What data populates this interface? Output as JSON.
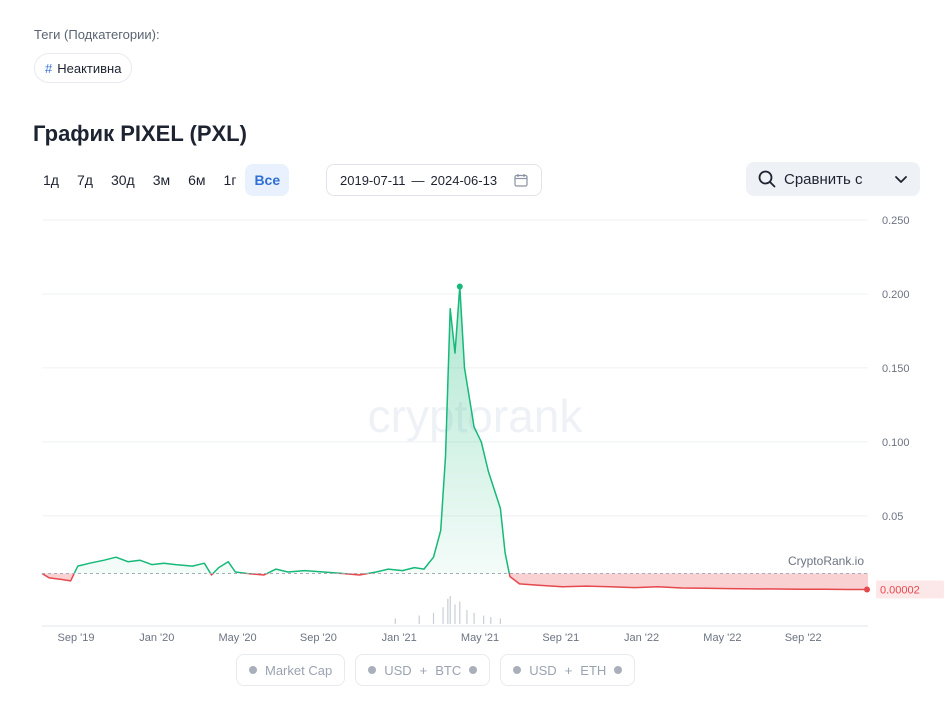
{
  "tags": {
    "label": "Теги (Подкатегории):",
    "chip_hash": "#",
    "chip_label": "Неактивна"
  },
  "title": "График PIXEL (PXL)",
  "ranges": [
    "1д",
    "7д",
    "30д",
    "3м",
    "6м",
    "1г",
    "Все"
  ],
  "active_range": "Все",
  "date_range": {
    "from": "2019-07-11",
    "sep": "—",
    "to": "2024-06-13"
  },
  "compare": {
    "label": "Сравнить с"
  },
  "watermark": "cryptorank",
  "source_label": "CryptoRank.io",
  "current_price_label": "0.00002",
  "legend": [
    {
      "parts": [
        "Market Cap"
      ]
    },
    {
      "parts": [
        "USD",
        "+",
        "BTC"
      ]
    },
    {
      "parts": [
        "USD",
        "+",
        "ETH"
      ]
    }
  ],
  "chart_data": {
    "type": "area",
    "y_ticks": [
      "0.250",
      "0.200",
      "0.150",
      "0.100",
      "0.05"
    ],
    "ylim": [
      -0.0015,
      0.25
    ],
    "x_ticks": [
      "Sep '19",
      "Jan '20",
      "May '20",
      "Sep '20",
      "Jan '21",
      "May '21",
      "Sep '21",
      "Jan '22",
      "May '22",
      "Sep '22"
    ],
    "baseline": 0.011,
    "colors": {
      "up": "#16b979",
      "down": "#e5484d"
    },
    "series": [
      {
        "values": [
          [
            2019.52,
            0.011
          ],
          [
            2019.55,
            0.008
          ],
          [
            2019.6,
            0.007
          ],
          [
            2019.64,
            0.006
          ],
          [
            2019.67,
            0.016
          ],
          [
            2019.72,
            0.018
          ],
          [
            2019.78,
            0.02
          ],
          [
            2019.83,
            0.022
          ],
          [
            2019.88,
            0.019
          ],
          [
            2019.93,
            0.02
          ],
          [
            2019.98,
            0.017
          ],
          [
            2020.03,
            0.018
          ],
          [
            2020.08,
            0.017
          ],
          [
            2020.15,
            0.016
          ],
          [
            2020.2,
            0.018
          ],
          [
            2020.23,
            0.01
          ],
          [
            2020.26,
            0.015
          ],
          [
            2020.3,
            0.019
          ],
          [
            2020.33,
            0.012
          ],
          [
            2020.38,
            0.011
          ],
          [
            2020.45,
            0.01
          ],
          [
            2020.5,
            0.014
          ],
          [
            2020.55,
            0.012
          ],
          [
            2020.62,
            0.013
          ],
          [
            2020.7,
            0.012
          ],
          [
            2020.78,
            0.011
          ],
          [
            2020.85,
            0.01
          ],
          [
            2020.92,
            0.012
          ],
          [
            2020.97,
            0.014
          ],
          [
            2021.03,
            0.013
          ],
          [
            2021.08,
            0.015
          ],
          [
            2021.12,
            0.014
          ],
          [
            2021.16,
            0.022
          ],
          [
            2021.19,
            0.04
          ],
          [
            2021.21,
            0.09
          ],
          [
            2021.23,
            0.19
          ],
          [
            2021.25,
            0.16
          ],
          [
            2021.27,
            0.205
          ],
          [
            2021.29,
            0.15
          ],
          [
            2021.31,
            0.13
          ],
          [
            2021.33,
            0.11
          ],
          [
            2021.36,
            0.1
          ],
          [
            2021.39,
            0.08
          ],
          [
            2021.42,
            0.065
          ],
          [
            2021.44,
            0.055
          ],
          [
            2021.46,
            0.025
          ],
          [
            2021.48,
            0.009
          ],
          [
            2021.52,
            0.004
          ],
          [
            2021.6,
            0.003
          ],
          [
            2021.7,
            0.002
          ],
          [
            2021.8,
            0.0025
          ],
          [
            2021.9,
            0.002
          ],
          [
            2022.0,
            0.0015
          ],
          [
            2022.1,
            0.002
          ],
          [
            2022.2,
            0.0012
          ],
          [
            2022.3,
            0.001
          ],
          [
            2022.4,
            0.0008
          ],
          [
            2022.5,
            0.0006
          ],
          [
            2022.6,
            0.0005
          ],
          [
            2022.7,
            0.0004
          ],
          [
            2022.8,
            0.0003
          ],
          [
            2022.9,
            0.0002
          ],
          [
            2022.98,
            0.0002
          ]
        ]
      }
    ],
    "peak": [
      2021.27,
      0.205
    ],
    "volume": [
      [
        2021.0,
        0.2
      ],
      [
        2021.1,
        0.3
      ],
      [
        2021.16,
        0.4
      ],
      [
        2021.2,
        0.6
      ],
      [
        2021.22,
        0.9
      ],
      [
        2021.23,
        1.0
      ],
      [
        2021.25,
        0.7
      ],
      [
        2021.27,
        0.8
      ],
      [
        2021.3,
        0.5
      ],
      [
        2021.33,
        0.4
      ],
      [
        2021.37,
        0.3
      ],
      [
        2021.4,
        0.25
      ],
      [
        2021.44,
        0.2
      ]
    ]
  }
}
